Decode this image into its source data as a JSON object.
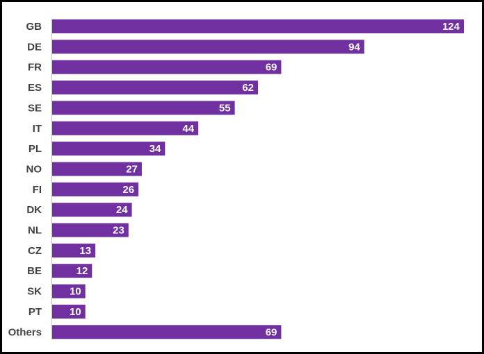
{
  "chart_data": {
    "type": "bar",
    "orientation": "horizontal",
    "categories": [
      "GB",
      "DE",
      "FR",
      "ES",
      "SE",
      "IT",
      "PL",
      "NO",
      "FI",
      "DK",
      "NL",
      "CZ",
      "BE",
      "SK",
      "PT",
      "Others"
    ],
    "values": [
      124,
      94,
      69,
      62,
      55,
      44,
      34,
      27,
      26,
      24,
      23,
      13,
      12,
      10,
      10,
      69
    ],
    "title": "",
    "xlabel": "",
    "ylabel": "",
    "xlim": [
      0,
      124
    ],
    "grid": false,
    "legend": "none",
    "bar_color": "#7030a0",
    "value_label_color": "#ffffff",
    "category_label_color": "#404040"
  }
}
